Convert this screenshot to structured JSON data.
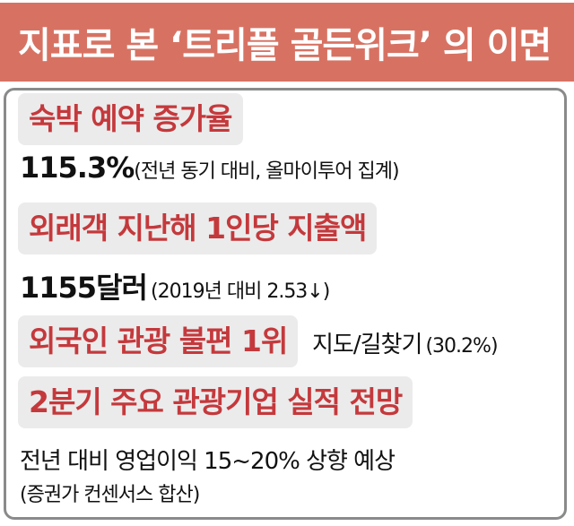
{
  "title": "지표로 본 ‘트리플 골든위크’ 의 이면",
  "sections": [
    {
      "label": "숙박 예약 증가율",
      "value": "115.3%",
      "note": "(전년 동기 대비, 올마이투어 집계)"
    },
    {
      "label": "외래객 지난해 1인당 지출액",
      "value": "1155달러",
      "note": "(2019년 대비  2.53↓)"
    },
    {
      "label": "외국인 관광 불편 1위",
      "value": "지도/길찾기",
      "note": "(30.2%)"
    },
    {
      "label": "2분기 주요 관광기업 실적 전망",
      "value": "전년 대비 영업이익 15~20% 상향 예상",
      "note": "(증권가 컨센서스 합산)"
    }
  ],
  "colors": {
    "header": "#d77263",
    "label_text": "#c4393c",
    "label_bg": "#ebebeb",
    "border": "#8a8a8a"
  }
}
